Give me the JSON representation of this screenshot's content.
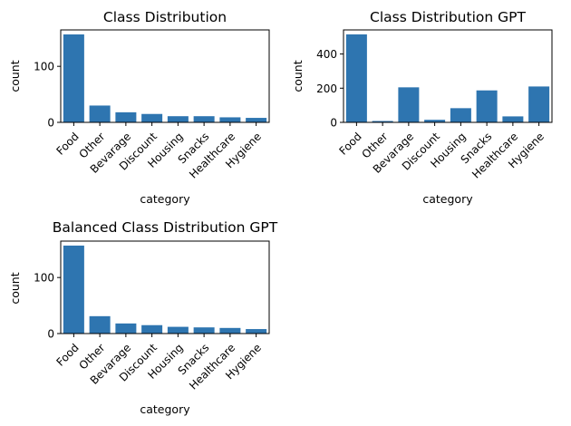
{
  "chart_data": [
    {
      "type": "bar",
      "title": "Class Distribution",
      "xlabel": "category",
      "ylabel": "count",
      "categories": [
        "Food",
        "Other",
        "Bevarage",
        "Discount",
        "Housing",
        "Snacks",
        "Healthcare",
        "Hygiene"
      ],
      "values": [
        157,
        30,
        18,
        15,
        11,
        11,
        9,
        8
      ],
      "ylim": [
        0,
        165
      ],
      "yticks": [
        0,
        100
      ],
      "color": "#2e75b0",
      "grid": false
    },
    {
      "type": "bar",
      "title": "Class Distribution GPT",
      "xlabel": "category",
      "ylabel": "count",
      "categories": [
        "Food",
        "Other",
        "Bevarage",
        "Discount",
        "Housing",
        "Snacks",
        "Healthcare",
        "Hygiene"
      ],
      "values": [
        515,
        8,
        205,
        15,
        83,
        187,
        35,
        210
      ],
      "ylim": [
        0,
        541
      ],
      "yticks": [
        0,
        200,
        400
      ],
      "color": "#2e75b0",
      "grid": false
    },
    {
      "type": "bar",
      "title": "Balanced Class Distribution GPT",
      "xlabel": "category",
      "ylabel": "count",
      "categories": [
        "Food",
        "Other",
        "Bevarage",
        "Discount",
        "Housing",
        "Snacks",
        "Healthcare",
        "Hygiene"
      ],
      "values": [
        157,
        31,
        18,
        15,
        12,
        11,
        10,
        8
      ],
      "ylim": [
        0,
        165
      ],
      "yticks": [
        0,
        100
      ],
      "color": "#2e75b0",
      "grid": false
    }
  ]
}
